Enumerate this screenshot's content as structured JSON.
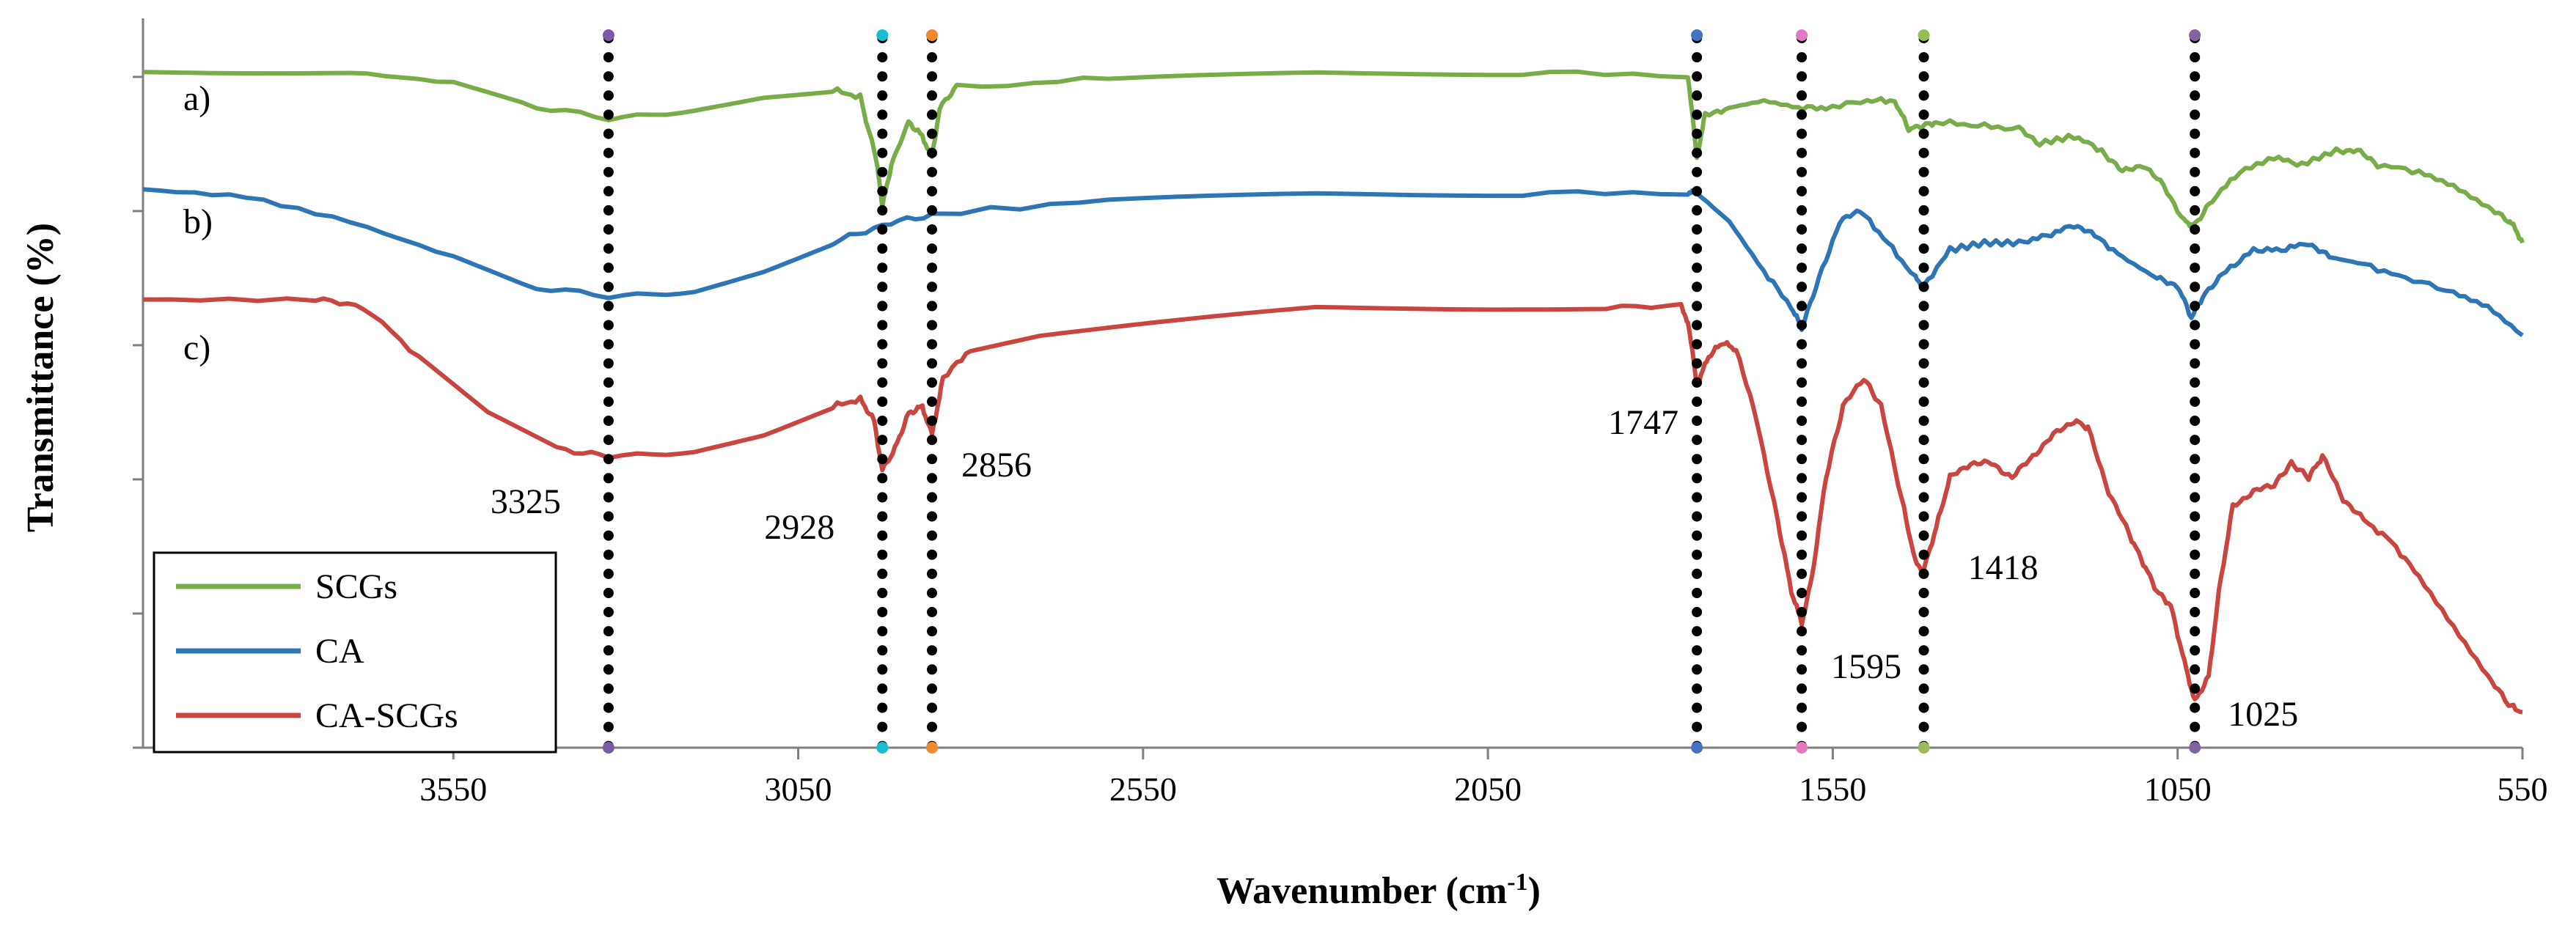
{
  "chart_data": {
    "type": "line",
    "title": "",
    "xlabel": "Wavenumber (cm-1)",
    "ylabel": "Transmittance (%)",
    "xlim": [
      4000,
      550
    ],
    "ylim": [
      0,
      100
    ],
    "x_reversed": true,
    "y_tick_labels_shown": false,
    "xticks": [
      3550,
      3050,
      2550,
      2050,
      1550,
      1050,
      550
    ],
    "grid": false,
    "legend_position": "bottom-left",
    "colors": {
      "SCGs": "#77ac48",
      "CA": "#2e75b6",
      "CA-SCGs": "#c9453f",
      "reference_lines": "#000000",
      "axis": "#7f7f7f"
    },
    "series": [
      {
        "name": "SCGs",
        "curve_label": "a)",
        "points": [
          [
            4000,
            95
          ],
          [
            3700,
            95
          ],
          [
            3550,
            93.5
          ],
          [
            3450,
            90.5
          ],
          [
            3325,
            88.5
          ],
          [
            3200,
            89.5
          ],
          [
            3100,
            91.5
          ],
          [
            3000,
            92.5
          ],
          [
            2960,
            91.5
          ],
          [
            2935,
            82
          ],
          [
            2928,
            76
          ],
          [
            2915,
            82
          ],
          [
            2890,
            88
          ],
          [
            2870,
            86
          ],
          [
            2856,
            83
          ],
          [
            2845,
            90
          ],
          [
            2820,
            93
          ],
          [
            2600,
            94
          ],
          [
            2300,
            95
          ],
          [
            2000,
            95
          ],
          [
            1760,
            94.5
          ],
          [
            1747,
            83
          ],
          [
            1735,
            89
          ],
          [
            1700,
            90
          ],
          [
            1650,
            91
          ],
          [
            1600,
            90
          ],
          [
            1560,
            90
          ],
          [
            1500,
            91
          ],
          [
            1460,
            91
          ],
          [
            1440,
            87
          ],
          [
            1418,
            87.5
          ],
          [
            1400,
            88
          ],
          [
            1340,
            87.5
          ],
          [
            1280,
            87
          ],
          [
            1250,
            85
          ],
          [
            1200,
            86
          ],
          [
            1160,
            84
          ],
          [
            1130,
            81
          ],
          [
            1100,
            82
          ],
          [
            1070,
            79
          ],
          [
            1040,
            74
          ],
          [
            1025,
            73.5
          ],
          [
            1000,
            77
          ],
          [
            960,
            81
          ],
          [
            910,
            83
          ],
          [
            870,
            82
          ],
          [
            820,
            84
          ],
          [
            790,
            84
          ],
          [
            760,
            82
          ],
          [
            700,
            81
          ],
          [
            650,
            79
          ],
          [
            600,
            76
          ],
          [
            570,
            74
          ],
          [
            560,
            73
          ],
          [
            550,
            71
          ]
        ]
      },
      {
        "name": "CA",
        "curve_label": "b)",
        "points": [
          [
            4000,
            78.5
          ],
          [
            3850,
            77.5
          ],
          [
            3700,
            74
          ],
          [
            3550,
            69
          ],
          [
            3450,
            65
          ],
          [
            3325,
            63.5
          ],
          [
            3200,
            64
          ],
          [
            3100,
            67
          ],
          [
            3000,
            71
          ],
          [
            2928,
            73.5
          ],
          [
            2856,
            75
          ],
          [
            2600,
            77
          ],
          [
            2300,
            78
          ],
          [
            2000,
            78
          ],
          [
            1760,
            78
          ],
          [
            1747,
            78
          ],
          [
            1700,
            74
          ],
          [
            1650,
            67
          ],
          [
            1610,
            62
          ],
          [
            1595,
            59
          ],
          [
            1570,
            66
          ],
          [
            1540,
            74
          ],
          [
            1510,
            75.5
          ],
          [
            1470,
            71
          ],
          [
            1430,
            66
          ],
          [
            1418,
            65
          ],
          [
            1380,
            70
          ],
          [
            1330,
            71
          ],
          [
            1280,
            71
          ],
          [
            1240,
            72
          ],
          [
            1200,
            73.5
          ],
          [
            1170,
            72
          ],
          [
            1130,
            69
          ],
          [
            1080,
            66
          ],
          [
            1050,
            65
          ],
          [
            1030,
            60.5
          ],
          [
            1010,
            64
          ],
          [
            980,
            67
          ],
          [
            940,
            70
          ],
          [
            900,
            70
          ],
          [
            860,
            71
          ],
          [
            830,
            69
          ],
          [
            780,
            68
          ],
          [
            720,
            66
          ],
          [
            650,
            64
          ],
          [
            600,
            62
          ],
          [
            550,
            58
          ]
        ]
      },
      {
        "name": "CA-SCGs",
        "curve_label": "c)",
        "points": [
          [
            4000,
            63
          ],
          [
            3750,
            63
          ],
          [
            3680,
            62
          ],
          [
            3600,
            55
          ],
          [
            3500,
            47
          ],
          [
            3400,
            42
          ],
          [
            3325,
            41
          ],
          [
            3200,
            41.5
          ],
          [
            3100,
            44
          ],
          [
            3000,
            48
          ],
          [
            2960,
            49
          ],
          [
            2940,
            46
          ],
          [
            2928,
            39
          ],
          [
            2910,
            42
          ],
          [
            2890,
            47
          ],
          [
            2870,
            48
          ],
          [
            2856,
            44
          ],
          [
            2840,
            52
          ],
          [
            2800,
            56
          ],
          [
            2700,
            58
          ],
          [
            2500,
            60
          ],
          [
            2300,
            62
          ],
          [
            2100,
            62
          ],
          [
            1900,
            62
          ],
          [
            1770,
            62
          ],
          [
            1760,
            60
          ],
          [
            1747,
            51
          ],
          [
            1730,
            55
          ],
          [
            1710,
            57
          ],
          [
            1690,
            56
          ],
          [
            1660,
            46
          ],
          [
            1630,
            32
          ],
          [
            1610,
            22
          ],
          [
            1595,
            17.5
          ],
          [
            1580,
            24
          ],
          [
            1560,
            38
          ],
          [
            1535,
            48
          ],
          [
            1505,
            52
          ],
          [
            1480,
            48
          ],
          [
            1450,
            35
          ],
          [
            1430,
            26
          ],
          [
            1418,
            25
          ],
          [
            1400,
            31
          ],
          [
            1380,
            38
          ],
          [
            1350,
            40
          ],
          [
            1320,
            40
          ],
          [
            1290,
            38
          ],
          [
            1260,
            41
          ],
          [
            1230,
            44
          ],
          [
            1200,
            46
          ],
          [
            1180,
            45
          ],
          [
            1150,
            36
          ],
          [
            1120,
            30
          ],
          [
            1100,
            26
          ],
          [
            1080,
            22
          ],
          [
            1060,
            20
          ],
          [
            1040,
            12
          ],
          [
            1025,
            6.5
          ],
          [
            1005,
            10
          ],
          [
            990,
            22
          ],
          [
            970,
            34
          ],
          [
            940,
            36
          ],
          [
            910,
            37
          ],
          [
            885,
            40
          ],
          [
            860,
            38
          ],
          [
            840,
            41
          ],
          [
            810,
            35
          ],
          [
            780,
            32
          ],
          [
            740,
            29
          ],
          [
            700,
            24
          ],
          [
            650,
            17
          ],
          [
            600,
            10
          ],
          [
            570,
            6
          ],
          [
            550,
            5
          ]
        ]
      }
    ],
    "reference_lines": [
      3325,
      2928,
      2856,
      1747,
      1595,
      1418,
      1025
    ],
    "annotations": [
      {
        "text": "3325",
        "x": 3325
      },
      {
        "text": "2928",
        "x": 2928
      },
      {
        "text": "2856",
        "x": 2856
      },
      {
        "text": "1747",
        "x": 1747
      },
      {
        "text": "1595",
        "x": 1595
      },
      {
        "text": "1418",
        "x": 1418
      },
      {
        "text": "1025",
        "x": 1025
      }
    ],
    "legend": [
      "SCGs",
      "CA",
      "CA-SCGs"
    ]
  }
}
